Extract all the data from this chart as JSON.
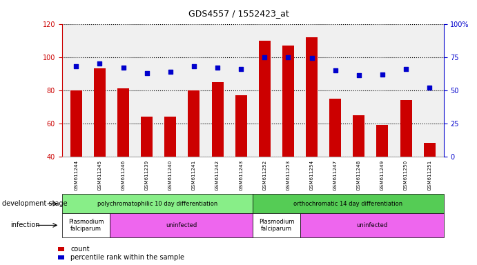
{
  "title": "GDS4557 / 1552423_at",
  "samples": [
    "GSM611244",
    "GSM611245",
    "GSM611246",
    "GSM611239",
    "GSM611240",
    "GSM611241",
    "GSM611242",
    "GSM611243",
    "GSM611252",
    "GSM611253",
    "GSM611254",
    "GSM611247",
    "GSM611248",
    "GSM611249",
    "GSM611250",
    "GSM611251"
  ],
  "counts": [
    80,
    93,
    81,
    64,
    64,
    80,
    85,
    77,
    110,
    107,
    112,
    75,
    65,
    59,
    74,
    48
  ],
  "percentiles": [
    68,
    70,
    67,
    63,
    64,
    68,
    67,
    66,
    75,
    75,
    74,
    65,
    61,
    62,
    66,
    52
  ],
  "ylim_left": [
    40,
    120
  ],
  "ylim_right": [
    0,
    100
  ],
  "yticks_left": [
    40,
    60,
    80,
    100,
    120
  ],
  "yticks_right": [
    0,
    25,
    50,
    75,
    100
  ],
  "bar_color": "#cc0000",
  "dot_color": "#0000cc",
  "bg_color": "#f0f0f0",
  "dev_stage_groups": [
    {
      "label": "polychromatophilic 10 day differentiation",
      "start": 0,
      "end": 8,
      "color": "#88ee88"
    },
    {
      "label": "orthochromatic 14 day differentiation",
      "start": 8,
      "end": 16,
      "color": "#55cc55"
    }
  ],
  "infection_groups": [
    {
      "label": "Plasmodium\nfalciparum",
      "start": 0,
      "end": 2,
      "color": "#ffffff"
    },
    {
      "label": "uninfected",
      "start": 2,
      "end": 8,
      "color": "#ee66ee"
    },
    {
      "label": "Plasmodium\nfalciparum",
      "start": 8,
      "end": 10,
      "color": "#ffffff"
    },
    {
      "label": "uninfected",
      "start": 10,
      "end": 16,
      "color": "#ee66ee"
    }
  ],
  "legend_count_label": "count",
  "legend_pct_label": "percentile rank within the sample",
  "dev_stage_label": "development stage",
  "infection_label": "infection"
}
